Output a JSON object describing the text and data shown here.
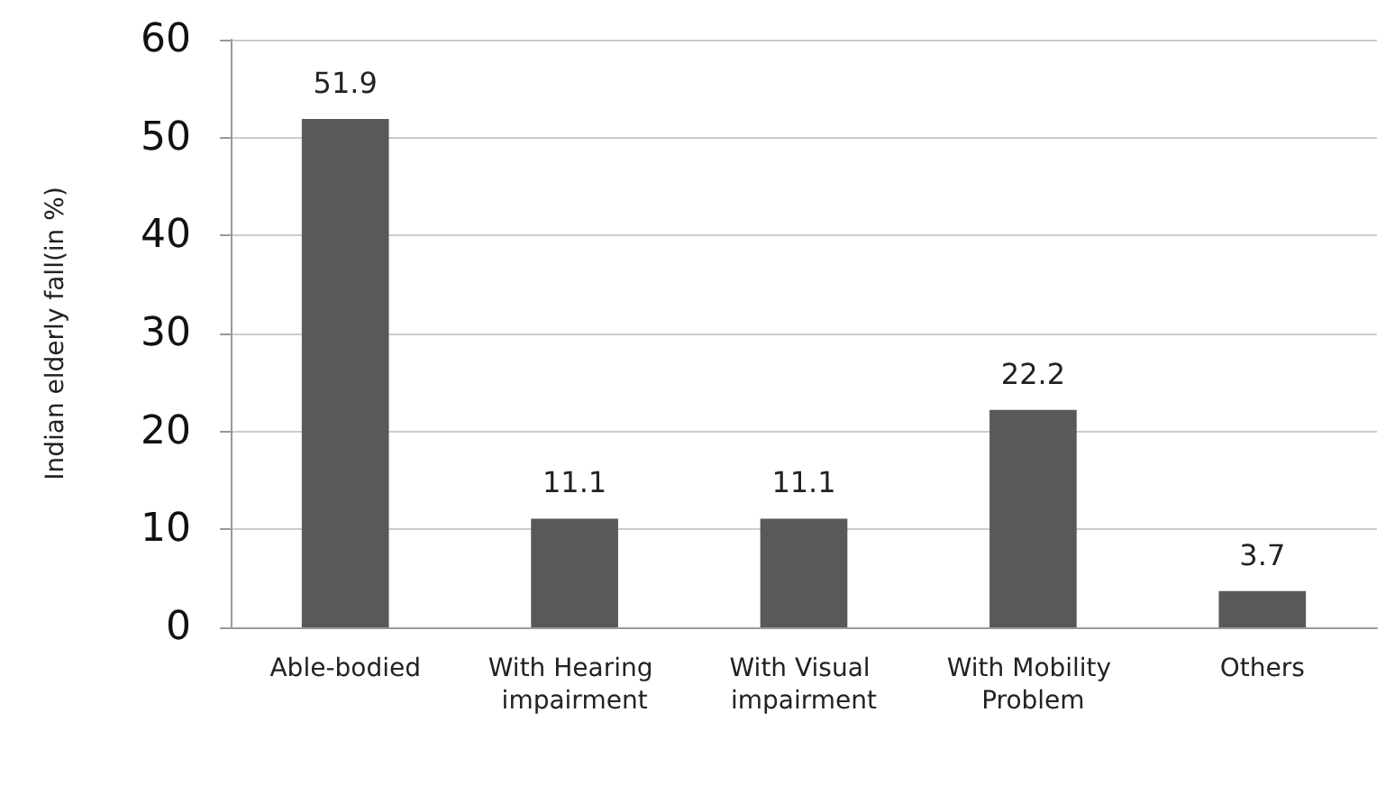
{
  "chart_data": {
    "type": "bar",
    "ylabel": "Indian elderly fall(in %)",
    "categories": [
      "Able-bodied",
      "With Hearing impairment",
      "With Visual impairment",
      "With Mobility Problem",
      "Others"
    ],
    "values": [
      51.9,
      11.1,
      11.1,
      22.2,
      3.7
    ],
    "color": "#595959",
    "ylim": [
      0,
      60
    ],
    "yticks": [
      0,
      10,
      20,
      30,
      40,
      50,
      60
    ],
    "grid": "y",
    "data_labels": true
  }
}
